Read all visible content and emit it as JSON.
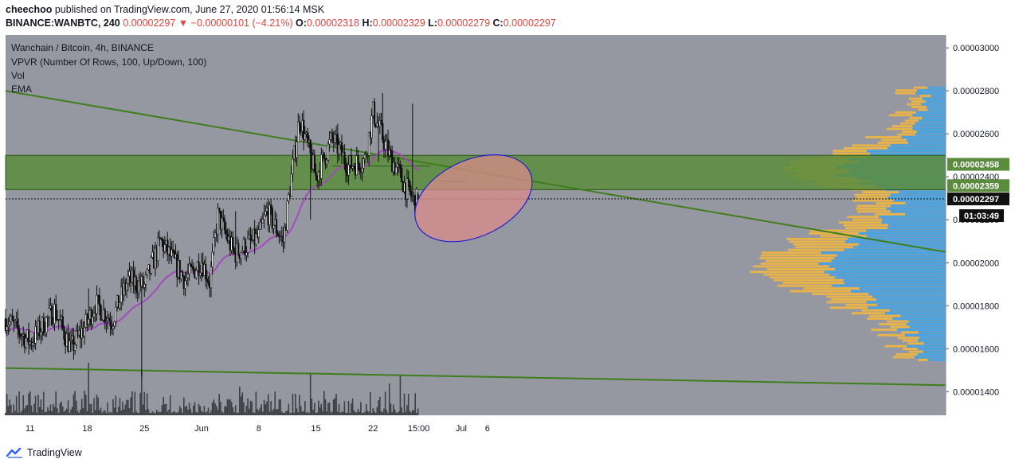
{
  "header": {
    "author": "cheechoo",
    "published_text": " published on TradingView.com, June 27, 2020 01:56:14 MSK",
    "symbol": "BINANCE:WANBTC, 240",
    "last": "0.00002297",
    "change_arrow": "▼",
    "change": "−0.00000101 (−4.21%)",
    "o_label": "O:",
    "o_value": "0.00002318",
    "h_label": "H:",
    "h_value": "0.00002329",
    "l_label": "L:",
    "l_value": "0.00002279",
    "c_label": "C:",
    "c_value": "0.00002297"
  },
  "legend": {
    "pair": "Wanchain / Bitcoin, 4h, BINANCE",
    "vpvr": "VPVR (Number Of Rows, 100, Up/Down, 100)",
    "vol": "Vol",
    "ema": "EMA"
  },
  "footer": {
    "brand": "TradingView"
  },
  "colors": {
    "plot_bg": "#9598a1",
    "zone": "#5b8c3d",
    "trendline": "#3e7d1c",
    "ema": "#a44ac0",
    "ellipse_stroke": "#1f1fd4",
    "ellipse_fill": "#d98b8b",
    "vpvr_up": "#4aa3df",
    "vpvr_down": "#e8b44a",
    "candle": "#111111"
  },
  "chart_data": {
    "type": "candlestick",
    "y_ticks": [
      "0.00003000",
      "0.00002800",
      "0.00002600",
      "0.00002400",
      "0.00002200",
      "0.00002000",
      "0.00001800",
      "0.00001600",
      "0.00001400"
    ],
    "ylim": [
      1.29e-05,
      3.06e-05
    ],
    "x_ticks": [
      "11",
      "18",
      "25",
      "Jun",
      "8",
      "15",
      "22",
      "15:00",
      "Jul",
      "6"
    ],
    "price_labels": [
      {
        "text": "0.00002458",
        "value": 2.458e-05,
        "style": "zone"
      },
      {
        "text": "0.00002359",
        "value": 2.359e-05,
        "style": "zone"
      },
      {
        "text": "0.00002297",
        "value": 2.297e-05,
        "style": "last"
      }
    ],
    "countdown": "01:03:49",
    "zone_range": [
      2.34e-05,
      2.5e-05
    ],
    "approx_close_path": [
      {
        "x": "May 8",
        "y": 1.74e-05
      },
      {
        "x": "May 11",
        "y": 1.63e-05
      },
      {
        "x": "May 14",
        "y": 1.78e-05
      },
      {
        "x": "May 16",
        "y": 1.6e-05
      },
      {
        "x": "May 18",
        "y": 1.72e-05
      },
      {
        "x": "May 19",
        "y": 1.81e-05
      },
      {
        "x": "May 21",
        "y": 1.73e-05
      },
      {
        "x": "May 23",
        "y": 1.92e-05
      },
      {
        "x": "May 25",
        "y": 1.89e-05
      },
      {
        "x": "May 26",
        "y": 2e-05
      },
      {
        "x": "May 27",
        "y": 2.1e-05
      },
      {
        "x": "May 28",
        "y": 2.04e-05
      },
      {
        "x": "May 30",
        "y": 1.92e-05
      },
      {
        "x": "Jun 1",
        "y": 2.01e-05
      },
      {
        "x": "Jun 2",
        "y": 1.91e-05
      },
      {
        "x": "Jun 3",
        "y": 2.22e-05
      },
      {
        "x": "Jun 5",
        "y": 2.04e-05
      },
      {
        "x": "Jun 8",
        "y": 2.12e-05
      },
      {
        "x": "Jun 9",
        "y": 2.24e-05
      },
      {
        "x": "Jun 11",
        "y": 2.1e-05
      },
      {
        "x": "Jun 12",
        "y": 2.4e-05
      },
      {
        "x": "Jun 13",
        "y": 2.68e-05
      },
      {
        "x": "Jun 15",
        "y": 2.4e-05
      },
      {
        "x": "Jun 17",
        "y": 2.58e-05
      },
      {
        "x": "Jun 19",
        "y": 2.45e-05
      },
      {
        "x": "Jun 21",
        "y": 2.48e-05
      },
      {
        "x": "Jun 22",
        "y": 2.7e-05
      },
      {
        "x": "Jun 24",
        "y": 2.5e-05
      },
      {
        "x": "Jun 25",
        "y": 2.43e-05
      },
      {
        "x": "Jun 26",
        "y": 2.35e-05
      },
      {
        "x": "Jun 27",
        "y": 2.29e-05
      }
    ]
  }
}
